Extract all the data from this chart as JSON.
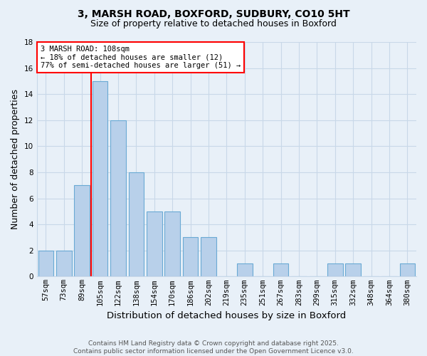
{
  "title1": "3, MARSH ROAD, BOXFORD, SUDBURY, CO10 5HT",
  "title2": "Size of property relative to detached houses in Boxford",
  "xlabel": "Distribution of detached houses by size in Boxford",
  "ylabel": "Number of detached properties",
  "categories": [
    "57sqm",
    "73sqm",
    "89sqm",
    "105sqm",
    "122sqm",
    "138sqm",
    "154sqm",
    "170sqm",
    "186sqm",
    "202sqm",
    "219sqm",
    "235sqm",
    "251sqm",
    "267sqm",
    "283sqm",
    "299sqm",
    "315sqm",
    "332sqm",
    "348sqm",
    "364sqm",
    "380sqm"
  ],
  "values": [
    2,
    2,
    7,
    15,
    12,
    8,
    5,
    5,
    3,
    3,
    0,
    1,
    0,
    1,
    0,
    0,
    1,
    1,
    0,
    0,
    1
  ],
  "bar_color": "#b8d0ea",
  "bar_edge_color": "#6aaad4",
  "vline_color": "red",
  "vline_x_idx": 3,
  "annotation_text": "3 MARSH ROAD: 108sqm\n← 18% of detached houses are smaller (12)\n77% of semi-detached houses are larger (51) →",
  "annotation_box_color": "white",
  "annotation_box_edge_color": "red",
  "ylim": [
    0,
    18
  ],
  "yticks": [
    0,
    2,
    4,
    6,
    8,
    10,
    12,
    14,
    16,
    18
  ],
  "background_color": "#e8f0f8",
  "grid_color": "#c8d8e8",
  "footer_text": "Contains HM Land Registry data © Crown copyright and database right 2025.\nContains public sector information licensed under the Open Government Licence v3.0.",
  "title_fontsize": 10,
  "subtitle_fontsize": 9,
  "axis_label_fontsize": 9,
  "tick_fontsize": 7.5,
  "annotation_fontsize": 7.5,
  "footer_fontsize": 6.5
}
